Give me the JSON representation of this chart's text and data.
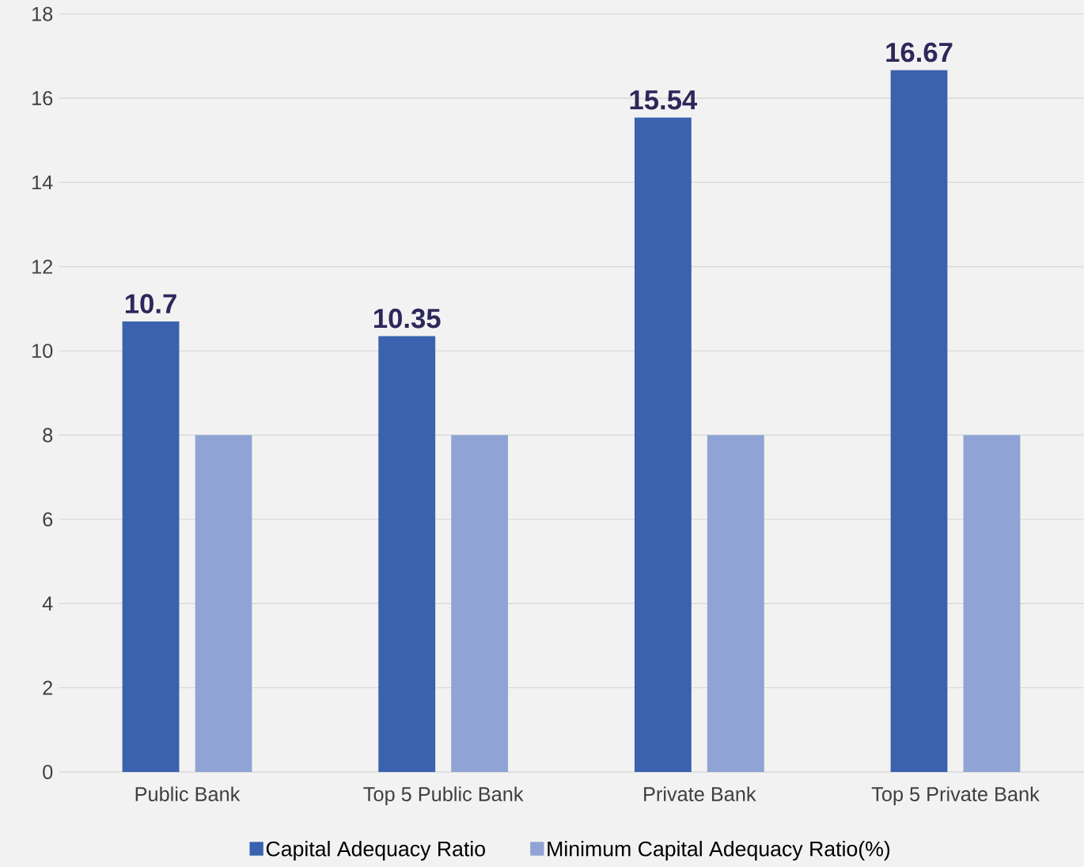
{
  "chart_data": {
    "type": "bar",
    "categories": [
      "Public Bank",
      "Top 5 Public Bank",
      "Private Bank",
      "Top 5 Private Bank"
    ],
    "series": [
      {
        "name": "Capital Adequacy Ratio",
        "color": "#3a62ad",
        "values": [
          10.7,
          10.35,
          15.54,
          16.67
        ],
        "value_labels": [
          "10.7",
          "10.35",
          "15.54",
          "16.67"
        ]
      },
      {
        "name": "Minimum Capital Adequacy Ratio(%)",
        "color": "#8fa3d4",
        "values": [
          8,
          8,
          8,
          8
        ]
      }
    ],
    "ylim": [
      0,
      18
    ],
    "yticks": [
      0,
      2,
      4,
      6,
      8,
      10,
      12,
      14,
      16,
      18
    ],
    "grid": "y",
    "legend": "bottom"
  }
}
